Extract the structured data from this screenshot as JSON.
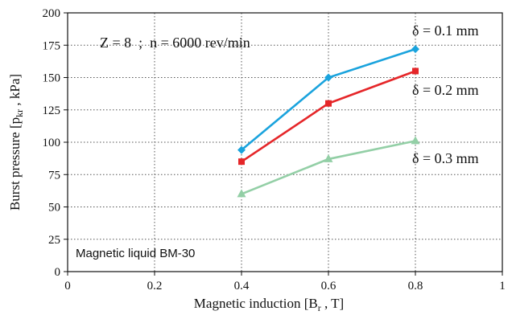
{
  "chart_data": {
    "type": "line",
    "xlabel": "Magnetic induction [B",
    "xlabel_sub": "r",
    "xlabel_tail": " , T]",
    "ylabel": "Burst pressure [p",
    "ylabel_sub": "kr",
    "ylabel_tail": " , kPa]",
    "xlim": [
      0,
      1
    ],
    "ylim": [
      0,
      200
    ],
    "x_ticks": [
      0,
      0.2,
      0.4,
      0.6,
      0.8,
      1
    ],
    "x_tick_labels": [
      "0",
      "0.2",
      "0.4",
      "0.6",
      "0.8",
      "1"
    ],
    "y_ticks": [
      0,
      25,
      50,
      75,
      100,
      125,
      150,
      175,
      200
    ],
    "y_tick_labels": [
      "0",
      "25",
      "50",
      "75",
      "100",
      "125",
      "150",
      "175",
      "200"
    ],
    "grid": true,
    "annotation_top": "Z = 8  ;  n = 6000 rev/min",
    "annotation_bottom": "Magnetic liquid BM-30",
    "series": [
      {
        "name": "δ = 0.1 mm",
        "color": "#1aa3dd",
        "marker": "diamond",
        "x": [
          0.4,
          0.6,
          0.8
        ],
        "y": [
          94,
          150,
          172
        ]
      },
      {
        "name": "δ = 0.2 mm",
        "color": "#e52629",
        "marker": "square",
        "x": [
          0.4,
          0.6,
          0.8
        ],
        "y": [
          85,
          130,
          155
        ]
      },
      {
        "name": "δ = 0.3 mm",
        "color": "#93cfa6",
        "marker": "triangle",
        "x": [
          0.4,
          0.6,
          0.8
        ],
        "y": [
          60,
          87,
          101
        ]
      }
    ]
  }
}
